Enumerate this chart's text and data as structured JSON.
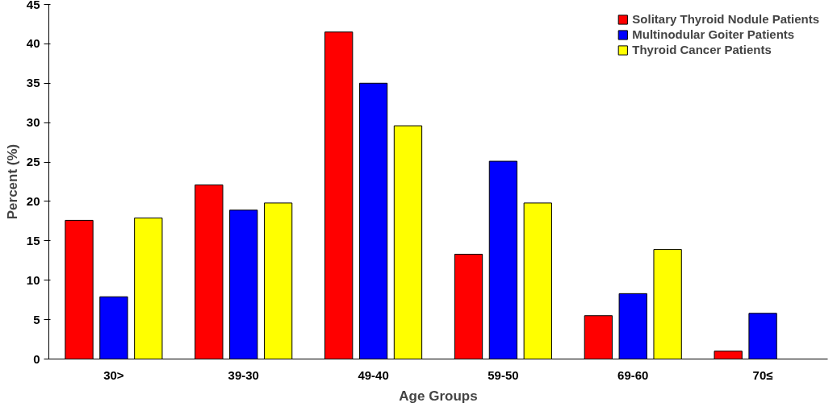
{
  "chart_data": {
    "type": "bar",
    "xlabel": "Age Groups",
    "ylabel": "Percent (%)",
    "categories": [
      "30>",
      "39-30",
      "49-40",
      "59-50",
      "69-60",
      "70≤"
    ],
    "series": [
      {
        "name": "Solitary Thyroid Nodule Patients",
        "color": "#ff0000",
        "values": [
          17.6,
          22.1,
          41.5,
          13.3,
          5.5,
          1.0
        ]
      },
      {
        "name": "Multinodular Goiter Patients",
        "color": "#0000ff",
        "values": [
          7.9,
          18.9,
          35.0,
          25.1,
          8.3,
          5.8
        ]
      },
      {
        "name": "Thyroid Cancer Patients",
        "color": "#ffff00",
        "values": [
          17.9,
          19.8,
          29.6,
          19.8,
          13.9,
          null
        ]
      }
    ],
    "ylim": [
      0,
      45
    ],
    "yticks": [
      0,
      5,
      10,
      15,
      20,
      25,
      30,
      35,
      40,
      45
    ],
    "grid": false,
    "legend": "top right"
  }
}
